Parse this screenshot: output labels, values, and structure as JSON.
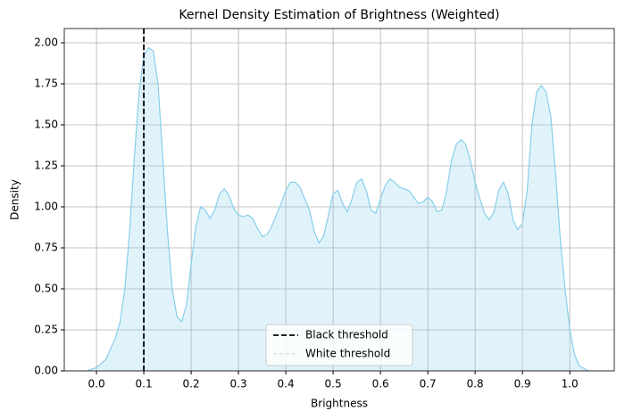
{
  "chart_data": {
    "type": "kde",
    "title": "Kernel Density Estimation of Brightness (Weighted)",
    "x_label": "Brightness",
    "y_label": "Density",
    "xlim": [
      -0.068,
      1.094
    ],
    "ylim": [
      0,
      2.087
    ],
    "xticks": [
      {
        "value": 0,
        "label": "0.0"
      },
      0.1,
      0.2,
      0.3,
      0.4,
      0.5,
      0.6,
      0.7,
      0.8,
      0.9,
      {
        "value": 1,
        "label": "1.0"
      }
    ],
    "yticks": [
      {
        "value": 0,
        "label": "0.00"
      },
      0.25,
      {
        "value": 0.5,
        "label": "0.50"
      },
      0.75,
      {
        "value": 1,
        "label": "1.00"
      },
      1.25,
      {
        "value": 1.5,
        "label": "1.50"
      },
      1.75,
      {
        "value": 2,
        "label": "2.00"
      }
    ],
    "grid": true,
    "legend": "lower center",
    "x": [
      -0.02,
      0,
      0.02,
      0.04,
      0.05,
      0.06,
      0.07,
      0.08,
      0.09,
      0.1,
      0.11,
      0.12,
      0.13,
      0.14,
      0.15,
      0.16,
      0.17,
      0.18,
      0.19,
      0.2,
      0.21,
      0.22,
      0.23,
      0.24,
      0.25,
      0.26,
      0.27,
      0.28,
      0.29,
      0.3,
      0.31,
      0.32,
      0.33,
      0.34,
      0.35,
      0.36,
      0.37,
      0.38,
      0.39,
      0.4,
      0.41,
      0.42,
      0.43,
      0.44,
      0.45,
      0.46,
      0.47,
      0.48,
      0.49,
      0.5,
      0.51,
      0.52,
      0.53,
      0.54,
      0.55,
      0.56,
      0.57,
      0.58,
      0.59,
      0.6,
      0.61,
      0.62,
      0.63,
      0.64,
      0.65,
      0.66,
      0.67,
      0.68,
      0.69,
      0.7,
      0.71,
      0.72,
      0.73,
      0.74,
      0.75,
      0.76,
      0.77,
      0.78,
      0.79,
      0.8,
      0.81,
      0.82,
      0.83,
      0.84,
      0.85,
      0.86,
      0.87,
      0.88,
      0.89,
      0.9,
      0.91,
      0.92,
      0.93,
      0.94,
      0.95,
      0.96,
      0.97,
      0.98,
      0.99,
      1,
      1.01,
      1.02,
      1.04
    ],
    "series": [
      {
        "color": "#87ceeb",
        "values": [
          0,
          0.02,
          0.07,
          0.2,
          0.3,
          0.5,
          0.85,
          1.3,
          1.7,
          1.92,
          1.97,
          1.95,
          1.75,
          1.3,
          0.85,
          0.5,
          0.33,
          0.3,
          0.4,
          0.65,
          0.88,
          1,
          0.98,
          0.93,
          0.98,
          1.08,
          1.11,
          1.07,
          0.99,
          0.95,
          0.94,
          0.95,
          0.93,
          0.87,
          0.82,
          0.83,
          0.88,
          0.95,
          1.02,
          1.1,
          1.15,
          1.15,
          1.12,
          1.05,
          0.98,
          0.85,
          0.78,
          0.82,
          0.95,
          1.08,
          1.1,
          1.02,
          0.97,
          1.05,
          1.15,
          1.17,
          1.1,
          0.98,
          0.96,
          1.05,
          1.13,
          1.17,
          1.15,
          1.12,
          1.11,
          1.1,
          1.06,
          1.02,
          1.03,
          1.06,
          1.03,
          0.97,
          0.98,
          1.1,
          1.28,
          1.38,
          1.41,
          1.38,
          1.28,
          1.15,
          1.05,
          0.96,
          0.92,
          0.97,
          1.1,
          1.15,
          1.08,
          0.92,
          0.86,
          0.9,
          1.1,
          1.5,
          1.7,
          1.74,
          1.7,
          1.55,
          1.2,
          0.8,
          0.5,
          0.25,
          0.1,
          0.03,
          0
        ]
      }
    ],
    "thresholds": [
      {
        "name": "Black threshold",
        "value": 0.1,
        "color": "#000000"
      },
      {
        "name": "White threshold",
        "value": 0.9,
        "color": "#d3d3d3"
      }
    ]
  }
}
